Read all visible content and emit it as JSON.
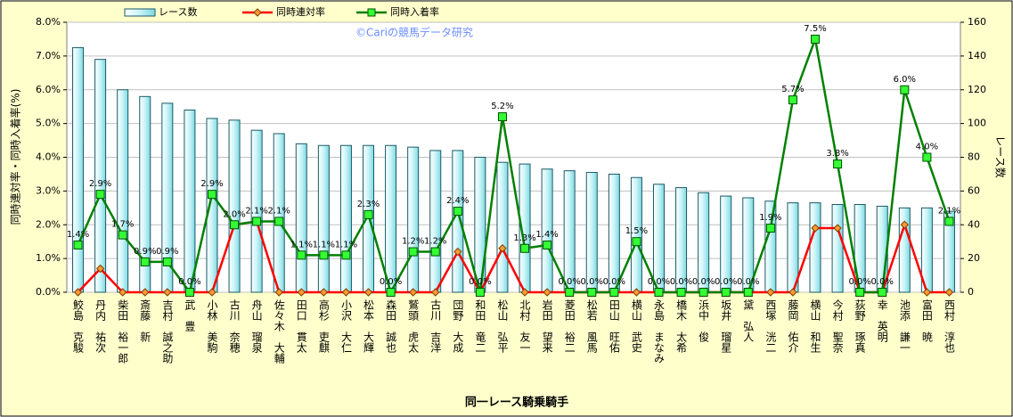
{
  "chart_data": {
    "type": "combo",
    "watermark": "©Cariの競馬データ研究",
    "x_label": "同一レース騎乗騎手",
    "y_label": "同時連対率・同時入着率(%)",
    "y2_label": "レース数",
    "legend": "top",
    "grid": true,
    "categories": [
      "鮫島　克駿",
      "丹内　祐次",
      "柴田　裕一郎",
      "斎藤　新",
      "吉村　誠之助",
      "武　豊",
      "小林　美駒",
      "古川　奈穂",
      "舟山　瑠泉",
      "佐々木　大輔",
      "田口　貫太",
      "高杉　吏麒",
      "小沢　大仁",
      "松本　大輝",
      "森田　誠也",
      "鷲頭　虎太",
      "古川　吉洋",
      "団野　大成",
      "和田　竜二",
      "松山　弘平",
      "北村　友一",
      "岩田　望来",
      "菱田　裕二",
      "松若　風馬",
      "田山　旺佑",
      "横山　武史",
      "永島　まなみ",
      "橋木　太希",
      "浜中　俊",
      "坂井　瑠星",
      "黛　弘人",
      "西塚　洸二",
      "藤岡　佑介",
      "横山　和生",
      "今村　聖奈",
      "荻野　琢真",
      "幸　英明",
      "池添　謙一",
      "富田　暁",
      "西村　淳也"
    ],
    "ylim": [
      0,
      8
    ],
    "yticks": [
      {
        "value": 0,
        "label": "0.0%"
      },
      {
        "value": 1,
        "label": "1.0%"
      },
      {
        "value": 2,
        "label": "2.0%"
      },
      {
        "value": 3,
        "label": "3.0%"
      },
      {
        "value": 4,
        "label": "4.0%"
      },
      {
        "value": 5,
        "label": "5.0%"
      },
      {
        "value": 6,
        "label": "6.0%"
      },
      {
        "value": 7,
        "label": "7.0%"
      },
      {
        "value": 8,
        "label": "8.0%"
      }
    ],
    "y2lim": [
      0,
      160
    ],
    "y2ticks": [
      0,
      20,
      40,
      60,
      80,
      100,
      120,
      140,
      160
    ],
    "series": [
      {
        "name": "レース数",
        "type": "bar",
        "axis": "y2",
        "color": "#c8f4f8",
        "values": [
          145,
          138,
          120,
          116,
          112,
          108,
          103,
          102,
          96,
          94,
          88,
          87,
          87,
          87,
          87,
          86,
          84,
          84,
          80,
          77,
          76,
          73,
          72,
          71,
          70,
          68,
          64,
          62,
          59,
          57,
          56,
          54,
          53,
          53,
          52,
          52,
          51,
          50,
          50,
          48
        ]
      },
      {
        "name": "同時連対率",
        "type": "line",
        "marker": "diamond",
        "color": "#ff0000",
        "values": [
          0,
          0.7,
          0,
          0,
          0,
          0,
          0,
          2.0,
          2.1,
          0,
          0,
          0,
          0,
          0,
          0,
          0,
          0,
          1.2,
          0,
          1.3,
          0,
          0,
          0,
          0,
          0,
          0,
          0,
          0,
          0,
          0,
          0,
          0,
          0,
          1.9,
          1.9,
          0,
          0,
          2.0,
          0,
          0
        ]
      },
      {
        "name": "同時入着率",
        "type": "line",
        "marker": "square",
        "color": "#008000",
        "values": [
          1.4,
          2.9,
          1.7,
          0.9,
          0.9,
          0.0,
          2.9,
          2.0,
          2.1,
          2.1,
          1.1,
          1.1,
          1.1,
          2.3,
          0.0,
          1.2,
          1.2,
          2.4,
          0.0,
          5.2,
          1.3,
          1.4,
          0.0,
          0.0,
          0.0,
          1.5,
          0.0,
          0.0,
          0.0,
          0.0,
          0.0,
          1.9,
          5.7,
          7.5,
          3.8,
          0.0,
          0.0,
          6.0,
          4.0,
          2.1
        ],
        "value_labels": [
          "1.4%",
          "2.9%",
          "1.7%",
          "0.9%",
          "0.9%",
          "0.0%",
          "2.9%",
          "2.0%",
          "2.1%",
          "2.1%",
          "1.1%",
          "1.1%",
          "1.1%",
          "2.3%",
          "0.0%",
          "1.2%",
          "1.2%",
          "2.4%",
          "0.0%",
          "5.2%",
          "1.3%",
          "1.4%",
          "0.0%",
          "0.0%",
          "0.0%",
          "1.5%",
          "0.0%",
          "0.0%",
          "0.0%",
          "0.0%",
          "0.0%",
          "1.9%",
          "5.7%",
          "7.5%",
          "3.8%",
          "0.0%",
          "0.0%",
          "6.0%",
          "4.0%",
          "2.1%"
        ]
      }
    ]
  }
}
